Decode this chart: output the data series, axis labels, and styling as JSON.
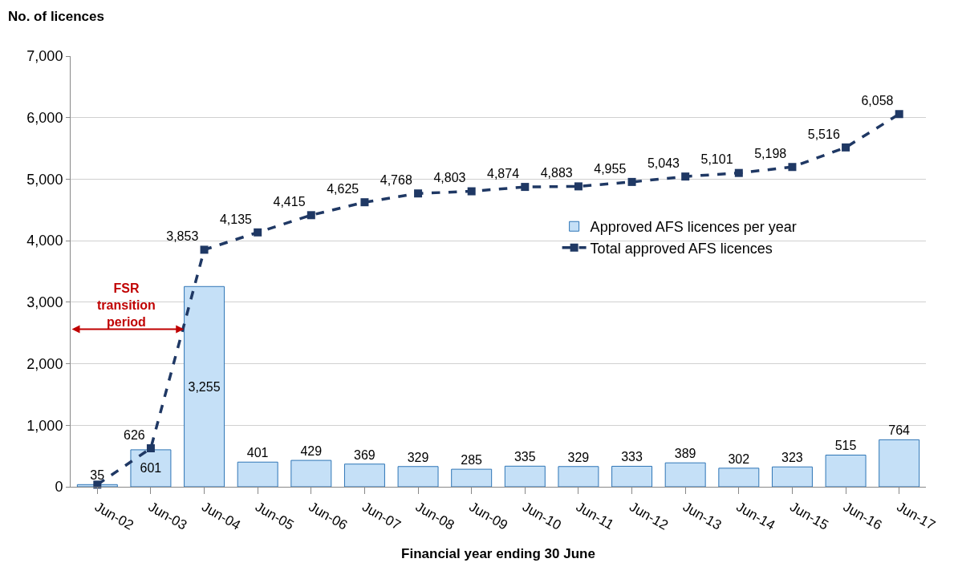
{
  "chart_data": {
    "type": "bar",
    "ylabel": "No. of licences",
    "xlabel": "Financial year ending 30 June",
    "categories": [
      "Jun-02",
      "Jun-03",
      "Jun-04",
      "Jun-05",
      "Jun-06",
      "Jun-07",
      "Jun-08",
      "Jun-09",
      "Jun-10",
      "Jun-11",
      "Jun-12",
      "Jun-13",
      "Jun-14",
      "Jun-15",
      "Jun-16",
      "Jun-17"
    ],
    "series": [
      {
        "name": "Approved AFS licences per year",
        "color": "#c5e0f7",
        "values": [
          35,
          601,
          3255,
          401,
          429,
          369,
          329,
          285,
          335,
          329,
          333,
          389,
          302,
          323,
          515,
          764
        ],
        "value_labels": [
          "35",
          "601",
          "3,255",
          "401",
          "429",
          "369",
          "329",
          "285",
          "335",
          "329",
          "333",
          "389",
          "302",
          "323",
          "515",
          "764"
        ]
      },
      {
        "name": "Total approved AFS licences",
        "type": "line",
        "color": "#1f3864",
        "marker": "square",
        "line_style": "dashed",
        "values": [
          35,
          626,
          3853,
          4135,
          4415,
          4625,
          4768,
          4803,
          4874,
          4883,
          4955,
          5043,
          5101,
          5198,
          5516,
          6058
        ],
        "value_labels": [
          null,
          "626",
          "3,853",
          "4,135",
          "4,415",
          "4,625",
          "4,768",
          "4,803",
          "4,874",
          "4,883",
          "4,955",
          "5,043",
          "5,101",
          "5,198",
          "5,516",
          "6,058"
        ]
      }
    ],
    "ylim": [
      0,
      7000
    ],
    "yticks": [
      {
        "value": 0,
        "label": "0"
      },
      {
        "value": 1000,
        "label": "1,000"
      },
      {
        "value": 2000,
        "label": "2,000"
      },
      {
        "value": 3000,
        "label": "3,000"
      },
      {
        "value": 4000,
        "label": "4,000"
      },
      {
        "value": 5000,
        "label": "5,000"
      },
      {
        "value": 6000,
        "label": "6,000"
      },
      {
        "value": 7000,
        "label": "7,000"
      }
    ],
    "grid": "y",
    "legend": "right",
    "annotations": [
      "FSR transition period"
    ]
  }
}
